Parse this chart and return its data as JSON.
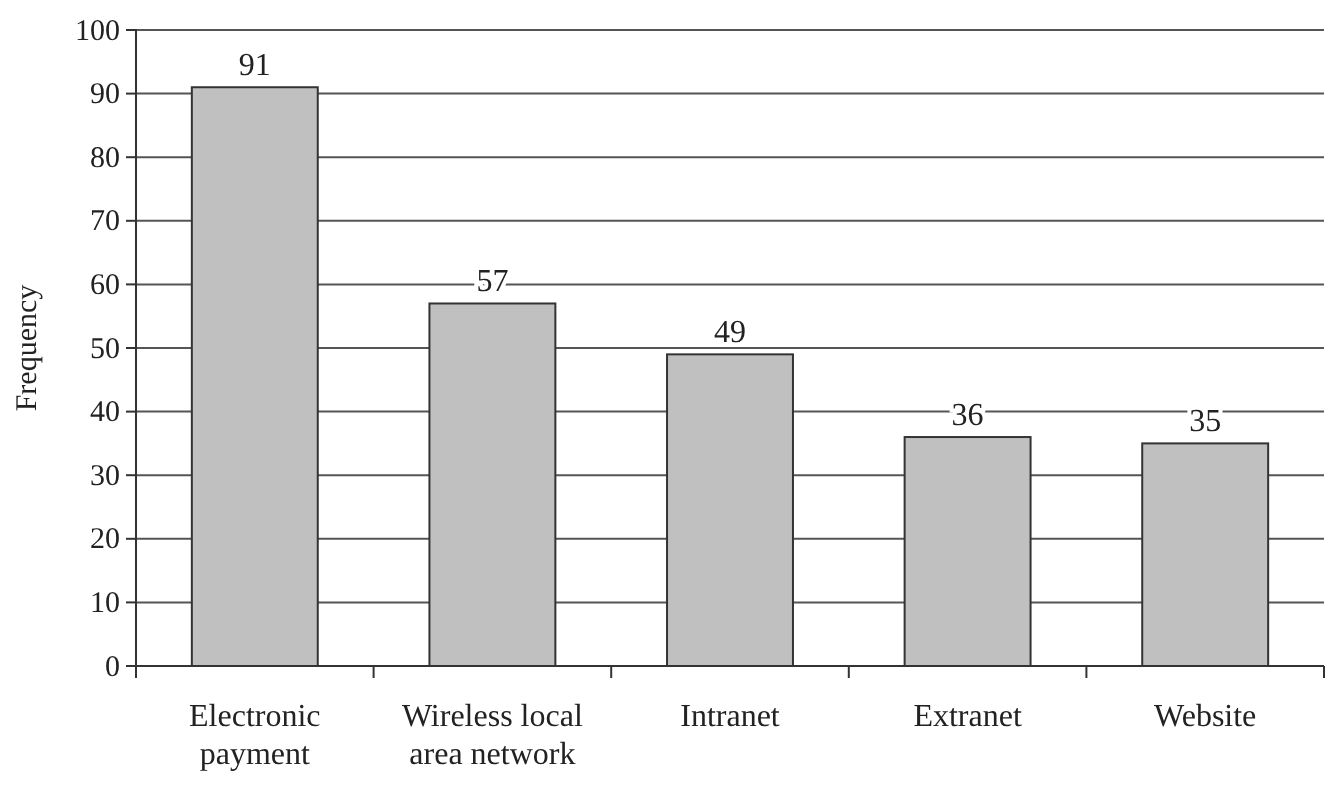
{
  "chart_data": {
    "type": "bar",
    "ylabel": "Frequency",
    "categories": [
      "Electronic payment",
      "Wireless local area network",
      "Intranet",
      "Extranet",
      "Website"
    ],
    "values": [
      91,
      57,
      49,
      36,
      35
    ],
    "color": "#c0c0c0",
    "ylim": [
      0,
      100
    ],
    "yticks": [
      0,
      10,
      20,
      30,
      40,
      50,
      60,
      70,
      80,
      90,
      100
    ],
    "grid": "y",
    "data_labels": true
  }
}
